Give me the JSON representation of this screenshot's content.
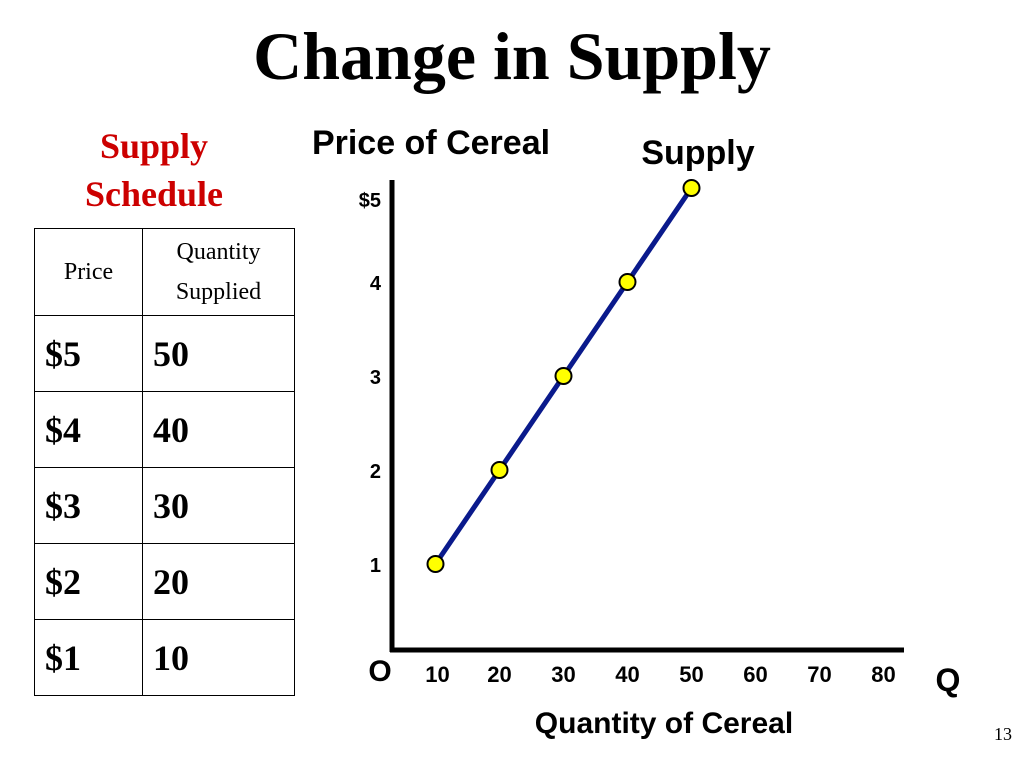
{
  "slide": {
    "title": "Change in Supply",
    "page_number": "13"
  },
  "schedule": {
    "heading_line1": "Supply",
    "heading_line2": "Schedule",
    "header_price": "Price",
    "header_quantity_line1": "Quantity",
    "header_quantity_line2": "Supplied",
    "rows": [
      {
        "price": "$5",
        "quantity": "50"
      },
      {
        "price": "$4",
        "quantity": "40"
      },
      {
        "price": "$3",
        "quantity": "30"
      },
      {
        "price": "$2",
        "quantity": "20"
      },
      {
        "price": "$1",
        "quantity": "10"
      }
    ]
  },
  "chart_data": {
    "type": "line",
    "ylabel": "Price of Cereal",
    "xlabel": "Quantity of Cereal",
    "origin_label": "O",
    "x_axis_end_label": "Q",
    "series": [
      {
        "name": "Supply",
        "points": [
          {
            "x": 10,
            "y": 1
          },
          {
            "x": 20,
            "y": 2
          },
          {
            "x": 30,
            "y": 3
          },
          {
            "x": 40,
            "y": 4
          },
          {
            "x": 50,
            "y": 5
          }
        ]
      }
    ],
    "x_ticks": [
      "10",
      "20",
      "30",
      "40",
      "50",
      "60",
      "70",
      "80"
    ],
    "y_ticks": [
      "1",
      "2",
      "3",
      "4",
      "$5"
    ],
    "xlim": [
      0,
      80
    ],
    "ylim": [
      0,
      5
    ],
    "grid": false,
    "colors": {
      "line": "#0a1a8c",
      "marker_fill": "#ffff00",
      "marker_stroke": "#000000"
    }
  }
}
